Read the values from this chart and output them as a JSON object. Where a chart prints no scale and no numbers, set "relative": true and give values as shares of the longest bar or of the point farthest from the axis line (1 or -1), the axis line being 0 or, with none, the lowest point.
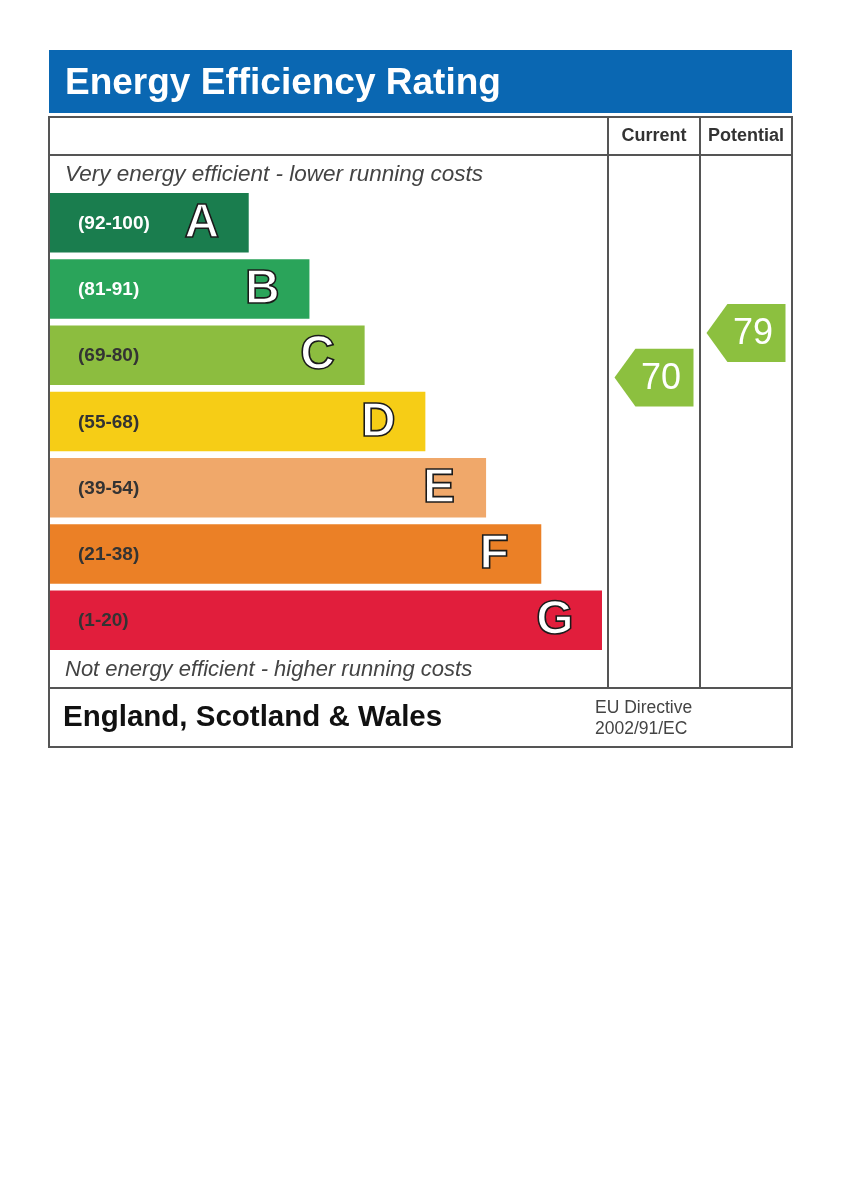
{
  "chart_data": [
    {
      "type": "bar",
      "title": "Energy Efficiency Rating",
      "orientation": "horizontal",
      "relative": true,
      "categories": [
        "(92-100)",
        "(81-91)",
        "(69-80)",
        "(55-68)",
        "(39-54)",
        "(21-38)",
        "(1-20)"
      ],
      "values": [
        0.36,
        0.47,
        0.57,
        0.68,
        0.79,
        0.89,
        1
      ],
      "colors": [
        "#1a7d4e",
        "#2aa45a",
        "#8cbd3f",
        "#f6cd16",
        "#f0a86a",
        "#eb8026",
        "#e11e3c"
      ],
      "annotations": [
        "Very energy efficient - lower running costs",
        "Not energy efficient - higher running costs",
        "England, Scotland & Wales",
        "EU Directive 2002/91/EC",
        {
          "text": "A",
          "y": "(92-100)"
        },
        {
          "text": "B",
          "y": "(81-91)"
        },
        {
          "text": "C",
          "y": "(69-80)"
        },
        {
          "text": "D",
          "y": "(55-68)"
        },
        {
          "text": "E",
          "y": "(39-54)"
        },
        {
          "text": "F",
          "y": "(21-38)"
        },
        {
          "text": "G",
          "y": "(1-20)"
        }
      ]
    },
    {
      "type": "other",
      "categories": [
        "Current",
        "Potential"
      ],
      "values": [
        70,
        79
      ],
      "colors": [
        "#8cc03f",
        "#8cc03f"
      ],
      "data_labels": true
    }
  ]
}
